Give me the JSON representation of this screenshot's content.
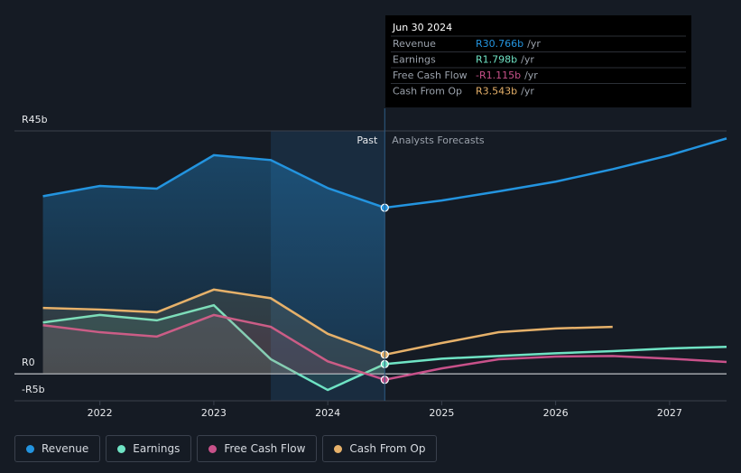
{
  "chart_data": {
    "type": "line",
    "x": [
      2021.5,
      2022,
      2022.5,
      2023,
      2023.5,
      2024,
      2024.5,
      2025,
      2025.5,
      2026,
      2026.5,
      2027,
      2027.5
    ],
    "series": [
      {
        "name": "Revenue",
        "color": "#2394df",
        "values": [
          32.9,
          34.8,
          34.3,
          40.5,
          39.6,
          34.4,
          30.766,
          32.1,
          33.8,
          35.6,
          37.9,
          40.5,
          43.6
        ]
      },
      {
        "name": "Earnings",
        "color": "#6fe3c4",
        "values": [
          9.5,
          10.9,
          9.9,
          12.7,
          2.7,
          -3.0,
          1.798,
          2.8,
          3.3,
          3.8,
          4.2,
          4.7,
          5.0
        ]
      },
      {
        "name": "Free Cash Flow",
        "color": "#c8518a",
        "values": [
          9.0,
          7.7,
          6.9,
          10.9,
          8.7,
          2.3,
          -1.115,
          1.0,
          2.7,
          3.2,
          3.3,
          2.8,
          2.2
        ]
      },
      {
        "name": "Cash From Op",
        "color": "#e6b16a",
        "values": [
          12.2,
          11.9,
          11.4,
          15.6,
          14.0,
          7.4,
          3.543,
          5.7,
          7.7,
          8.4,
          8.7,
          null,
          null
        ]
      }
    ],
    "xlim": [
      2021.25,
      2027.5
    ],
    "xticks": [
      2022,
      2023,
      2024,
      2025,
      2026,
      2027
    ],
    "ylim": [
      -5,
      45
    ],
    "yticks": [
      {
        "value": 45,
        "label": "R45b"
      },
      {
        "value": 0,
        "label": "R0"
      },
      {
        "value": -5,
        "label": "-R5b"
      }
    ],
    "forecast_start": 2024.5,
    "past_shade": [
      2023.5,
      2024.5
    ],
    "past_label": "Past",
    "forecast_label": "Analysts Forecasts",
    "tooltip": {
      "title": "Jun 30 2024",
      "rows": [
        {
          "label": "Revenue",
          "value": "R30.766b",
          "unit": "/yr"
        },
        {
          "label": "Earnings",
          "value": "R1.798b",
          "unit": "/yr"
        },
        {
          "label": "Free Cash Flow",
          "value": "-R1.115b",
          "unit": "/yr"
        },
        {
          "label": "Cash From Op",
          "value": "R3.543b",
          "unit": "/yr"
        }
      ]
    }
  }
}
